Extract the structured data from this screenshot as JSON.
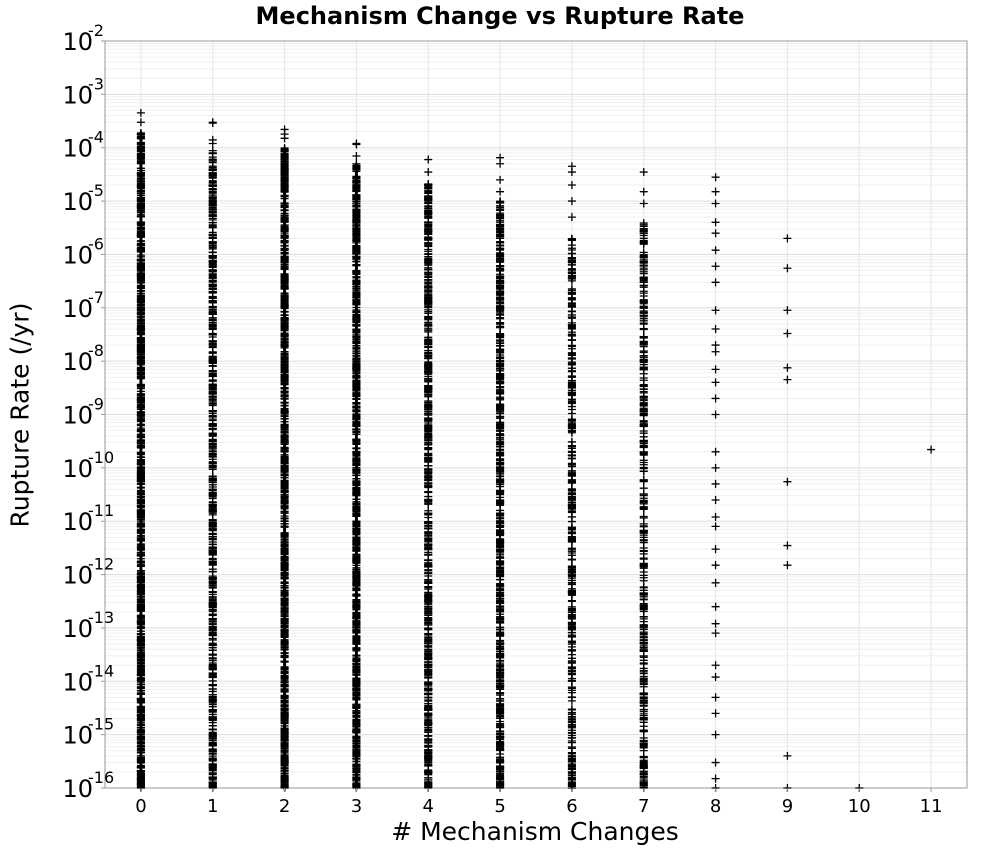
{
  "chart_data": {
    "type": "scatter",
    "title": "Mechanism Change vs Rupture Rate",
    "xlabel": "# Mechanism Changes",
    "ylabel": "Rupture Rate (/yr)",
    "y_scale": "log",
    "ylim": [
      1e-16,
      0.01
    ],
    "xlim": [
      -0.5,
      11.5
    ],
    "x_ticks": [
      "0",
      "1",
      "2",
      "3",
      "4",
      "5",
      "6",
      "7",
      "8",
      "9",
      "10",
      "11"
    ],
    "y_ticks": [
      {
        "base": "10",
        "exp": "-16"
      },
      {
        "base": "10",
        "exp": "-15"
      },
      {
        "base": "10",
        "exp": "-14"
      },
      {
        "base": "10",
        "exp": "-13"
      },
      {
        "base": "10",
        "exp": "-12"
      },
      {
        "base": "10",
        "exp": "-11"
      },
      {
        "base": "10",
        "exp": "-10"
      },
      {
        "base": "10",
        "exp": "-9"
      },
      {
        "base": "10",
        "exp": "-8"
      },
      {
        "base": "10",
        "exp": "-7"
      },
      {
        "base": "10",
        "exp": "-6"
      },
      {
        "base": "10",
        "exp": "-5"
      },
      {
        "base": "10",
        "exp": "-4"
      },
      {
        "base": "10",
        "exp": "-3"
      },
      {
        "base": "10",
        "exp": "-2"
      }
    ],
    "grid": true,
    "marker": "+",
    "marker_color": "#000000",
    "series": [
      {
        "x": 0,
        "ymin": 1e-16,
        "ymax": 0.0002,
        "outliers": [
          0.00045,
          0.0003
        ],
        "density": "very dense"
      },
      {
        "x": 1,
        "ymin": 1e-16,
        "ymax": 9e-05,
        "outliers": [
          0.0003,
          0.00029,
          0.00014,
          0.00012
        ],
        "density": "dense"
      },
      {
        "x": 2,
        "ymin": 1e-16,
        "ymax": 0.0001,
        "outliers": [
          0.00022,
          0.00018,
          0.00015
        ],
        "density": "very dense"
      },
      {
        "x": 3,
        "ymin": 1e-16,
        "ymax": 5e-05,
        "outliers": [
          0.00012,
          0.000115,
          7e-05
        ],
        "density": "very dense"
      },
      {
        "x": 4,
        "ymin": 1e-16,
        "ymax": 2.2e-05,
        "outliers": [
          6e-05,
          3.5e-05
        ],
        "density": "dense"
      },
      {
        "x": 5,
        "ymin": 1e-16,
        "ymax": 1e-05,
        "outliers": [
          6.5e-05,
          5e-05,
          2.5e-05,
          1.5e-05
        ],
        "density": "dense"
      },
      {
        "x": 6,
        "ymin": 1e-16,
        "ymax": 2e-06,
        "outliers": [
          4.5e-05,
          3.5e-05,
          2e-05,
          1e-05,
          5e-06
        ],
        "density": "medium"
      },
      {
        "x": 7,
        "ymin": 1e-16,
        "ymax": 4e-06,
        "outliers": [
          3.5e-05,
          1.5e-05,
          9e-06
        ],
        "density": "medium"
      },
      {
        "x": 8,
        "ymin": 1e-16,
        "ymax": 4e-06,
        "points": [
          2.8e-05,
          1.5e-05,
          9e-06,
          4e-06,
          2.5e-06,
          1.2e-06,
          6e-07,
          3e-07,
          9e-08,
          4e-08,
          2e-08,
          1.5e-08,
          7e-09,
          4e-09,
          2e-09,
          1e-09,
          2e-10,
          1e-10,
          5e-11,
          2.5e-11,
          1.2e-11,
          8e-12,
          3e-12,
          1.5e-12,
          7e-13,
          2.5e-13,
          1.2e-13,
          8e-14,
          2e-14,
          1.2e-14,
          5e-15,
          2.5e-15,
          1e-15,
          1e-16,
          3e-16,
          1.5e-16
        ],
        "density": "sparse"
      },
      {
        "x": 9,
        "points": [
          2e-06,
          5.5e-07,
          9e-08,
          3.3e-08,
          7.5e-09,
          4.5e-09,
          5.5e-11,
          3.5e-12,
          1.5e-12,
          4e-16,
          1e-16
        ]
      },
      {
        "x": 10,
        "points": [
          1e-16
        ]
      },
      {
        "x": 11,
        "points": [
          2.2e-10
        ]
      }
    ]
  }
}
